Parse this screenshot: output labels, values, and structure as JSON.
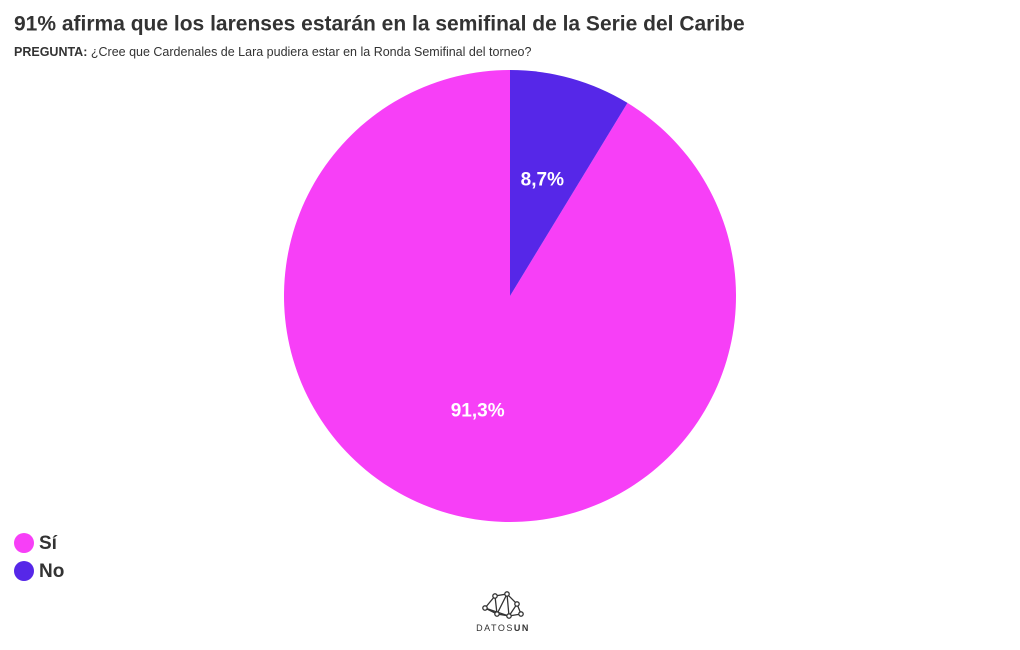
{
  "chart_data": {
    "type": "pie",
    "title": "91% afirma que los larenses estarán en la semifinal de la Serie del Caribe",
    "subtitle_label": "PREGUNTA:",
    "subtitle": "¿Cree que Cardenales de Lara pudiera estar en la Ronda Semifinal del torneo?",
    "categories": [
      "Sí",
      "No"
    ],
    "values": [
      91.3,
      8.7
    ],
    "value_labels": [
      "91,3%",
      "8,7%"
    ],
    "colors": [
      "#f73ff7",
      "#5627e8"
    ],
    "legend": "bottom-left",
    "logo": {
      "light": "DATOS",
      "bold": "UN"
    }
  }
}
